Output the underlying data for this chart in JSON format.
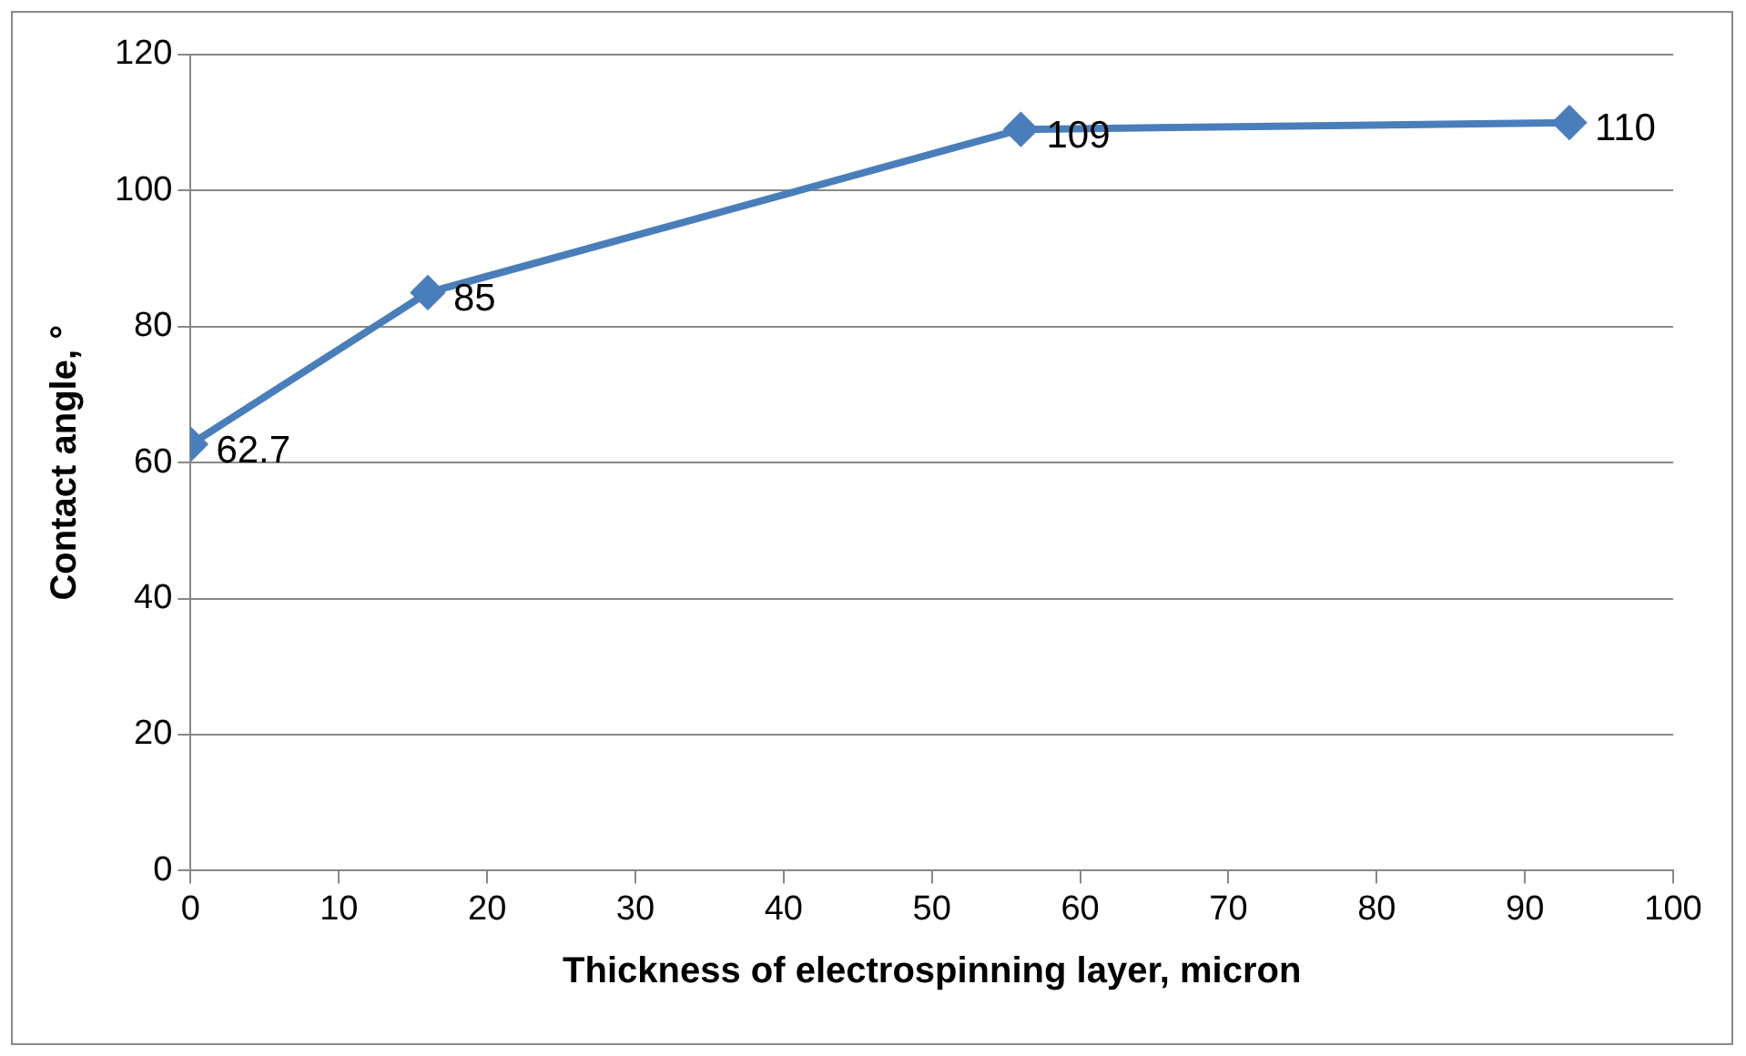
{
  "chart_data": {
    "type": "line",
    "xlabel": "Thickness of electrospinning layer, micron",
    "ylabel": "Contact angle, °",
    "x": [
      0,
      16,
      56,
      93
    ],
    "series": [
      {
        "color": "#4a7ebb",
        "values": [
          62.7,
          85,
          109,
          110
        ]
      }
    ],
    "xlim": [
      0,
      100
    ],
    "xticks": [
      0,
      10,
      20,
      30,
      40,
      50,
      60,
      70,
      80,
      90,
      100
    ],
    "ylim": [
      0,
      120
    ],
    "yticks": [
      0,
      20,
      40,
      60,
      80,
      100,
      120
    ],
    "grid": "y",
    "legend": false,
    "marker": "diamond",
    "line_style": "solid",
    "data_labels": true
  }
}
